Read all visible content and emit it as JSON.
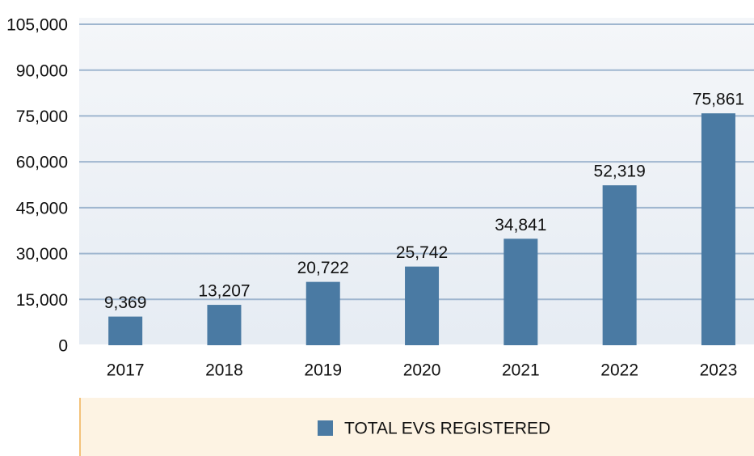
{
  "chart_data": {
    "type": "bar",
    "categories": [
      "2017",
      "2018",
      "2019",
      "2020",
      "2021",
      "2022",
      "2023"
    ],
    "series": [
      {
        "name": "TOTAL EVS REGISTERED",
        "color": "#4a7aa3",
        "values": [
          9369,
          13207,
          20722,
          25742,
          34841,
          52319,
          75861
        ],
        "value_labels": [
          "9,369",
          "13,207",
          "20,722",
          "25,742",
          "34,841",
          "52,319",
          "75,861"
        ]
      }
    ],
    "ylim": [
      0,
      105000
    ],
    "yticks": [
      0,
      {
        "value": 15000,
        "label": "15,000"
      },
      {
        "value": 30000,
        "label": "30,000"
      },
      {
        "value": 45000,
        "label": "45,000"
      },
      {
        "value": 60000,
        "label": "60,000"
      },
      {
        "value": 75000,
        "label": "75,000"
      },
      {
        "value": 90000,
        "label": "90,000"
      },
      {
        "value": 105000,
        "label": "105,000"
      }
    ],
    "grid": true,
    "legend": "bottom"
  }
}
